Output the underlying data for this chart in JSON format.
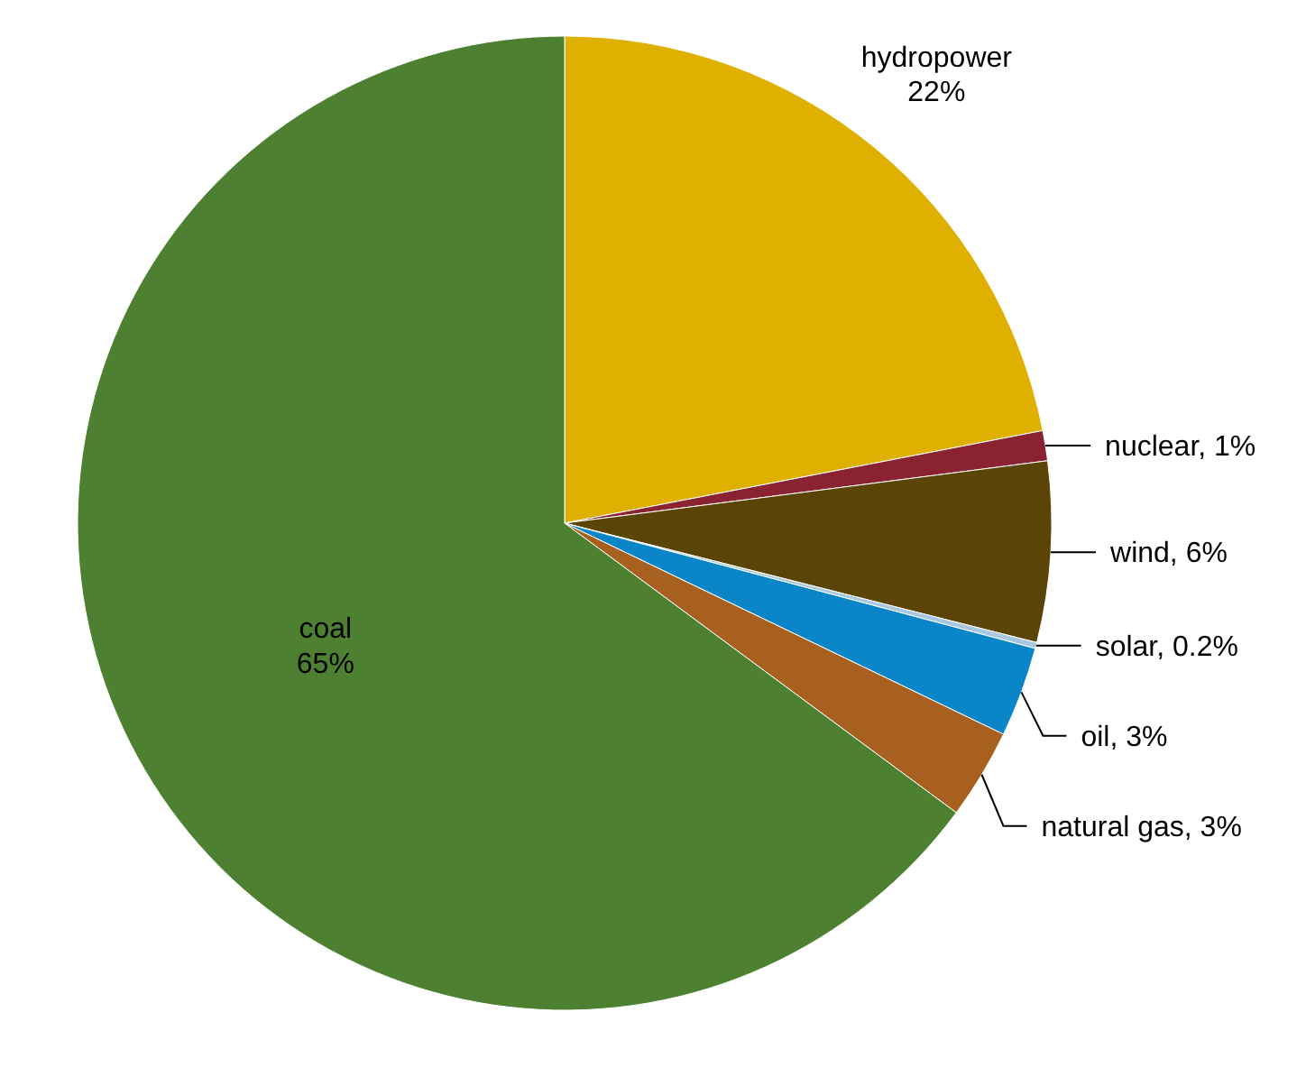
{
  "chart_data": {
    "type": "pie",
    "categories": [
      "hydropower",
      "nuclear",
      "wind",
      "solar",
      "oil",
      "natural gas",
      "coal"
    ],
    "values": [
      22,
      1,
      6,
      0.2,
      3,
      3,
      65
    ],
    "value_labels": [
      "22%",
      "1%",
      "6%",
      "0.2%",
      "3%",
      "3%",
      "65%"
    ],
    "colors": [
      "#e0b000",
      "#8b2232",
      "#5a4406",
      "#a8c8e0",
      "#0a86c8",
      "#a86020",
      "#4d8030"
    ]
  }
}
